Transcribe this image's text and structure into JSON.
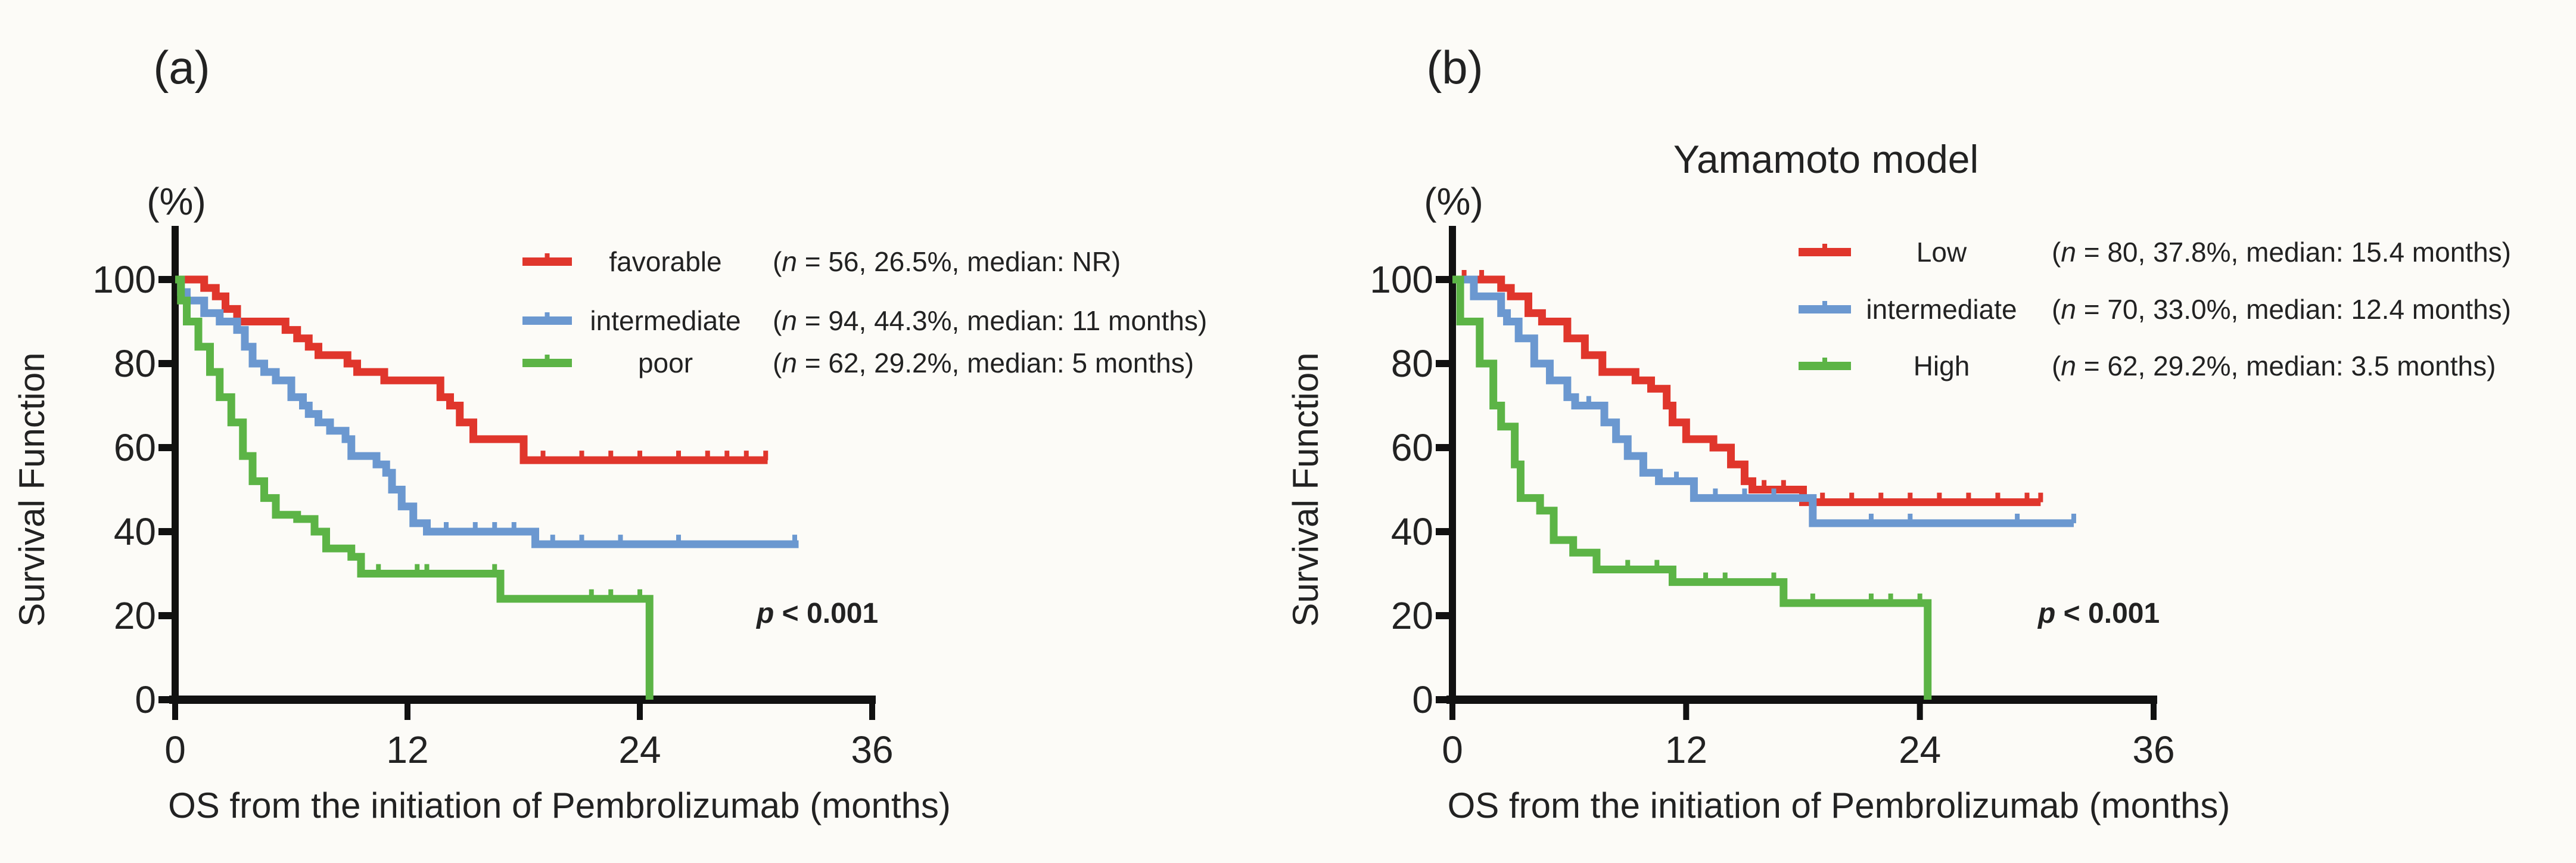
{
  "chart_data": [
    {
      "type": "line",
      "subtype": "kaplan-meier step",
      "panel_label": "(a)",
      "title": "",
      "ylabel": "Survival Function",
      "yunit": "(%)",
      "xlabel": "OS from the initiation of Pembrolizumab (months)",
      "xlim": [
        0,
        36
      ],
      "ylim": [
        0,
        100
      ],
      "xticks": [
        "0",
        "12",
        "24",
        "36"
      ],
      "yticks": [
        "0",
        "20",
        "40",
        "60",
        "80",
        "100"
      ],
      "p_symbol": "p",
      "p_text": " < 0.001",
      "legend_position": "top-right",
      "series": [
        {
          "name": "favorable",
          "color": "#e0362c",
          "open": "(",
          "n_symbol": "n",
          "stats": " = 56, 26.5%, median: NR)",
          "steps": [
            [
              0,
              100
            ],
            [
              1.5,
              98
            ],
            [
              2.1,
              96
            ],
            [
              2.6,
              93
            ],
            [
              3.2,
              90
            ],
            [
              5.7,
              88
            ],
            [
              6.3,
              86
            ],
            [
              6.9,
              84
            ],
            [
              7.4,
              82
            ],
            [
              8.9,
              80
            ],
            [
              9.4,
              78
            ],
            [
              10.8,
              76
            ],
            [
              13.7,
              72
            ],
            [
              14.2,
              70
            ],
            [
              14.7,
              66
            ],
            [
              15.4,
              62
            ],
            [
              18,
              57
            ]
          ],
          "end": 30.6,
          "censored": [
            19,
            21,
            22.5,
            24,
            26,
            27.5,
            28.5,
            29.5,
            30.5
          ]
        },
        {
          "name": "intermediate",
          "color": "#6b98d0",
          "open": "(",
          "n_symbol": "n",
          "stats": " = 94, 44.3%, median: 11 months)",
          "steps": [
            [
              0,
              100
            ],
            [
              0.3,
              97
            ],
            [
              0.6,
              95
            ],
            [
              1.5,
              92
            ],
            [
              2.3,
              90
            ],
            [
              3.2,
              88
            ],
            [
              3.6,
              84
            ],
            [
              4,
              80
            ],
            [
              4.6,
              78
            ],
            [
              5.2,
              76
            ],
            [
              6,
              72
            ],
            [
              6.6,
              70
            ],
            [
              6.9,
              68
            ],
            [
              7.4,
              66
            ],
            [
              8,
              64
            ],
            [
              8.8,
              62
            ],
            [
              9.1,
              58
            ],
            [
              10.4,
              56
            ],
            [
              10.9,
              54
            ],
            [
              11.2,
              50
            ],
            [
              11.7,
              46
            ],
            [
              12.3,
              42
            ],
            [
              13,
              40
            ],
            [
              18.6,
              37
            ]
          ],
          "end": 32.2,
          "censored": [
            14,
            15.5,
            16.5,
            17.5,
            19.5,
            21,
            23,
            26,
            32
          ]
        },
        {
          "name": "poor",
          "color": "#5cb446",
          "open": "(",
          "n_symbol": "n",
          "stats": " = 62, 29.2%, median: 5 months)",
          "steps": [
            [
              0,
              100
            ],
            [
              0.3,
              95
            ],
            [
              0.6,
              90
            ],
            [
              1.2,
              84
            ],
            [
              1.8,
              78
            ],
            [
              2.3,
              72
            ],
            [
              2.9,
              66
            ],
            [
              3.5,
              58
            ],
            [
              4,
              52
            ],
            [
              4.6,
              48
            ],
            [
              5.2,
              44
            ],
            [
              6.3,
              43
            ],
            [
              7.2,
              40
            ],
            [
              7.8,
              36
            ],
            [
              9.1,
              34
            ],
            [
              9.6,
              30
            ],
            [
              16.8,
              24
            ],
            [
              24.5,
              0
            ]
          ],
          "end": 24.5,
          "censored": [
            10.5,
            12.5,
            13,
            16.5,
            21.5,
            22.5,
            24
          ]
        }
      ]
    },
    {
      "type": "line",
      "subtype": "kaplan-meier step",
      "panel_label": "(b)",
      "title": "Yamamoto model",
      "ylabel": "Survival Function",
      "yunit": "(%)",
      "xlabel": "OS from the initiation of Pembrolizumab (months)",
      "xlim": [
        0,
        36
      ],
      "ylim": [
        0,
        100
      ],
      "xticks": [
        "0",
        "12",
        "24",
        "36"
      ],
      "yticks": [
        "0",
        "20",
        "40",
        "60",
        "80",
        "100"
      ],
      "p_symbol": "p",
      "p_text": " < 0.001",
      "legend_position": "top-right",
      "series": [
        {
          "name": "Low",
          "color": "#e0362c",
          "open": "(",
          "n_symbol": "n",
          "stats": " = 80, 37.8%, median: 15.4 months)",
          "steps": [
            [
              0,
              100
            ],
            [
              2.5,
              98
            ],
            [
              3,
              96
            ],
            [
              3.9,
              92
            ],
            [
              4.6,
              90
            ],
            [
              5.9,
              86
            ],
            [
              6.8,
              82
            ],
            [
              7.7,
              78
            ],
            [
              9.4,
              76
            ],
            [
              10.2,
              74
            ],
            [
              11,
              70
            ],
            [
              11.3,
              66
            ],
            [
              12,
              62
            ],
            [
              13.4,
              60
            ],
            [
              14.3,
              56
            ],
            [
              15,
              52
            ],
            [
              15.4,
              50
            ],
            [
              18,
              47
            ]
          ],
          "end": 30.2,
          "censored": [
            0.6,
            1.5,
            16,
            17,
            19,
            20.5,
            22,
            23.5,
            25,
            26.5,
            28,
            29.5,
            30.2
          ]
        },
        {
          "name": "intermediate",
          "color": "#6b98d0",
          "open": "(",
          "n_symbol": "n",
          "stats": " = 70, 33.0%, median: 12.4 months)",
          "steps": [
            [
              0,
              100
            ],
            [
              1.1,
              96
            ],
            [
              2.5,
              92
            ],
            [
              2.8,
              90
            ],
            [
              3.4,
              86
            ],
            [
              4.2,
              80
            ],
            [
              5,
              76
            ],
            [
              5.9,
              72
            ],
            [
              6.3,
              70
            ],
            [
              7.8,
              66
            ],
            [
              8.4,
              62
            ],
            [
              9,
              58
            ],
            [
              9.8,
              54
            ],
            [
              10.6,
              52
            ],
            [
              12.4,
              48
            ],
            [
              18.5,
              42
            ]
          ],
          "end": 31.9,
          "censored": [
            7,
            11.5,
            13.5,
            15,
            16.5,
            21.5,
            23.5,
            29,
            31.9
          ]
        },
        {
          "name": "High",
          "color": "#5cb446",
          "open": "(",
          "n_symbol": "n",
          "stats": " = 62, 29.2%, median: 3.5 months)",
          "steps": [
            [
              0,
              100
            ],
            [
              0.4,
              90
            ],
            [
              1.4,
              80
            ],
            [
              2.1,
              70
            ],
            [
              2.5,
              65
            ],
            [
              3.2,
              56
            ],
            [
              3.5,
              48
            ],
            [
              4.5,
              45
            ],
            [
              5.2,
              38
            ],
            [
              6.2,
              35
            ],
            [
              7.4,
              31
            ],
            [
              11.3,
              28
            ],
            [
              17,
              23
            ],
            [
              24.4,
              0
            ]
          ],
          "end": 24.4,
          "censored": [
            9,
            10.5,
            13,
            14,
            16.5,
            18.5,
            21.5,
            22.5,
            24
          ]
        }
      ]
    }
  ]
}
